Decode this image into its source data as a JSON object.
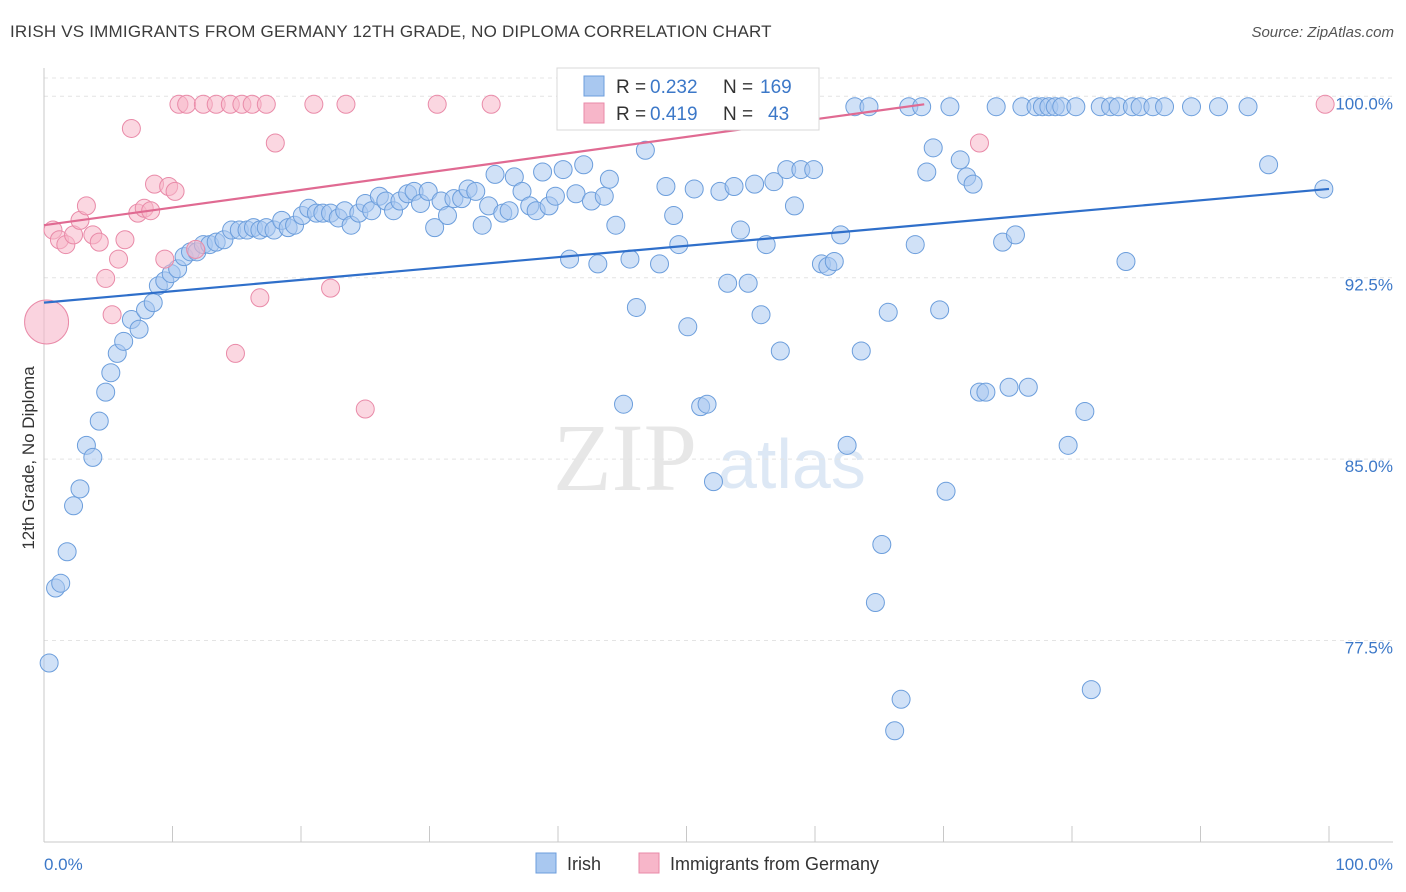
{
  "header": {
    "title": "IRISH VS IMMIGRANTS FROM GERMANY 12TH GRADE, NO DIPLOMA CORRELATION CHART",
    "source": "Source: ZipAtlas.com"
  },
  "watermark": {
    "zip": "ZIP",
    "atlas": "atlas"
  },
  "stats_box": {
    "rows": [
      {
        "r_label": "R =",
        "r_value": "0.232",
        "n_label": "N =",
        "n_value": "169",
        "color": "#a9c8f0"
      },
      {
        "r_label": "R =",
        "r_value": "0.419",
        "n_label": "N =",
        "n_value": "43",
        "color": "#f7b6c9"
      }
    ]
  },
  "legend": {
    "items": [
      {
        "label": "Irish",
        "color": "#a9c8f0"
      },
      {
        "label": "Immigrants from Germany",
        "color": "#f7b6c9"
      }
    ]
  },
  "chart_data": {
    "type": "scatter",
    "xlabel": "",
    "ylabel": "12th Grade, No Diploma",
    "xlim": [
      0,
      100
    ],
    "ylim": [
      69.5,
      101.5
    ],
    "x_tick_labels": [
      {
        "value": 0,
        "label": "0.0%"
      },
      {
        "value": 100,
        "label": "100.0%"
      }
    ],
    "y_ticks": [
      {
        "value": 100.0,
        "label": "100.0%"
      },
      {
        "value": 92.5,
        "label": "92.5%"
      },
      {
        "value": 85.0,
        "label": "85.0%"
      },
      {
        "value": 77.5,
        "label": "77.5%"
      }
    ],
    "grid": "horizontal dashed",
    "series": [
      {
        "name": "Irish",
        "color": "#a9c8f0",
        "stroke": "#6c9edc",
        "trend": {
          "x": [
            0,
            100
          ],
          "y": [
            91.8,
            96.5
          ],
          "color": "#2f6fca"
        },
        "points": [
          [
            0.4,
            76.9
          ],
          [
            0.9,
            80.0
          ],
          [
            1.3,
            80.2
          ],
          [
            1.8,
            81.5
          ],
          [
            2.3,
            83.4
          ],
          [
            2.8,
            84.1
          ],
          [
            3.3,
            85.9
          ],
          [
            3.8,
            85.4
          ],
          [
            4.3,
            86.9
          ],
          [
            4.8,
            88.1
          ],
          [
            5.2,
            88.9
          ],
          [
            5.7,
            89.7
          ],
          [
            6.2,
            90.2
          ],
          [
            6.8,
            91.1
          ],
          [
            7.4,
            90.7
          ],
          [
            7.9,
            91.5
          ],
          [
            8.5,
            91.8
          ],
          [
            8.9,
            92.5
          ],
          [
            9.4,
            92.7
          ],
          [
            9.9,
            93.0
          ],
          [
            10.4,
            93.2
          ],
          [
            10.9,
            93.7
          ],
          [
            11.4,
            93.9
          ],
          [
            11.9,
            93.9
          ],
          [
            12.4,
            94.2
          ],
          [
            12.9,
            94.2
          ],
          [
            13.4,
            94.3
          ],
          [
            14.0,
            94.4
          ],
          [
            14.6,
            94.8
          ],
          [
            15.2,
            94.8
          ],
          [
            15.8,
            94.8
          ],
          [
            16.3,
            94.9
          ],
          [
            16.8,
            94.8
          ],
          [
            17.3,
            94.9
          ],
          [
            17.9,
            94.8
          ],
          [
            18.5,
            95.2
          ],
          [
            19.0,
            94.9
          ],
          [
            19.5,
            95.0
          ],
          [
            20.1,
            95.4
          ],
          [
            20.6,
            95.7
          ],
          [
            21.2,
            95.5
          ],
          [
            21.7,
            95.5
          ],
          [
            22.3,
            95.5
          ],
          [
            22.9,
            95.3
          ],
          [
            23.4,
            95.6
          ],
          [
            23.9,
            95.0
          ],
          [
            24.5,
            95.5
          ],
          [
            25.0,
            95.9
          ],
          [
            25.5,
            95.6
          ],
          [
            26.1,
            96.2
          ],
          [
            26.6,
            96.0
          ],
          [
            27.2,
            95.6
          ],
          [
            27.7,
            96.0
          ],
          [
            28.3,
            96.3
          ],
          [
            28.8,
            96.4
          ],
          [
            29.3,
            95.9
          ],
          [
            29.9,
            96.4
          ],
          [
            30.4,
            94.9
          ],
          [
            30.9,
            96.0
          ],
          [
            31.4,
            95.4
          ],
          [
            31.9,
            96.1
          ],
          [
            32.5,
            96.1
          ],
          [
            33.0,
            96.5
          ],
          [
            33.6,
            96.4
          ],
          [
            34.1,
            95.0
          ],
          [
            34.6,
            95.8
          ],
          [
            35.1,
            97.1
          ],
          [
            35.7,
            95.5
          ],
          [
            36.2,
            95.6
          ],
          [
            36.6,
            97.0
          ],
          [
            37.2,
            96.4
          ],
          [
            37.8,
            95.8
          ],
          [
            38.3,
            95.6
          ],
          [
            38.8,
            97.2
          ],
          [
            39.3,
            95.8
          ],
          [
            39.8,
            96.2
          ],
          [
            40.4,
            97.3
          ],
          [
            40.9,
            93.6
          ],
          [
            41.4,
            96.3
          ],
          [
            42.0,
            97.5
          ],
          [
            42.6,
            96.0
          ],
          [
            43.1,
            93.4
          ],
          [
            43.6,
            96.2
          ],
          [
            44.0,
            96.9
          ],
          [
            44.5,
            95.0
          ],
          [
            45.1,
            87.6
          ],
          [
            45.6,
            93.6
          ],
          [
            46.1,
            91.6
          ],
          [
            46.8,
            98.1
          ],
          [
            47.3,
            99.9
          ],
          [
            47.9,
            93.4
          ],
          [
            48.4,
            96.6
          ],
          [
            49.0,
            95.4
          ],
          [
            49.4,
            94.2
          ],
          [
            50.1,
            90.8
          ],
          [
            50.6,
            96.5
          ],
          [
            51.1,
            87.5
          ],
          [
            51.6,
            87.6
          ],
          [
            52.1,
            84.4
          ],
          [
            52.6,
            96.4
          ],
          [
            53.2,
            92.6
          ],
          [
            53.7,
            96.6
          ],
          [
            54.2,
            94.8
          ],
          [
            54.8,
            92.6
          ],
          [
            55.3,
            96.7
          ],
          [
            55.8,
            91.3
          ],
          [
            56.2,
            94.2
          ],
          [
            56.8,
            96.8
          ],
          [
            57.3,
            89.8
          ],
          [
            57.8,
            97.3
          ],
          [
            58.4,
            95.8
          ],
          [
            58.9,
            97.3
          ],
          [
            59.4,
            100.0
          ],
          [
            59.9,
            97.3
          ],
          [
            60.5,
            93.4
          ],
          [
            61.0,
            93.3
          ],
          [
            61.5,
            93.5
          ],
          [
            62.0,
            94.6
          ],
          [
            62.5,
            85.9
          ],
          [
            63.1,
            99.9
          ],
          [
            63.6,
            89.8
          ],
          [
            64.2,
            99.9
          ],
          [
            64.7,
            79.4
          ],
          [
            65.2,
            81.8
          ],
          [
            65.7,
            91.4
          ],
          [
            66.2,
            74.1
          ],
          [
            66.7,
            75.4
          ],
          [
            67.3,
            99.9
          ],
          [
            67.8,
            94.2
          ],
          [
            68.3,
            99.9
          ],
          [
            68.7,
            97.2
          ],
          [
            69.2,
            98.2
          ],
          [
            69.7,
            91.5
          ],
          [
            70.2,
            84.0
          ],
          [
            70.5,
            99.9
          ],
          [
            71.3,
            97.7
          ],
          [
            71.8,
            97.0
          ],
          [
            72.3,
            96.7
          ],
          [
            72.8,
            88.1
          ],
          [
            73.3,
            88.1
          ],
          [
            74.1,
            99.9
          ],
          [
            74.6,
            94.3
          ],
          [
            75.1,
            88.3
          ],
          [
            75.6,
            94.6
          ],
          [
            76.1,
            99.9
          ],
          [
            76.6,
            88.3
          ],
          [
            77.2,
            99.9
          ],
          [
            77.7,
            99.9
          ],
          [
            78.2,
            99.9
          ],
          [
            78.7,
            99.9
          ],
          [
            79.2,
            99.9
          ],
          [
            79.7,
            85.9
          ],
          [
            80.3,
            99.9
          ],
          [
            81.0,
            87.3
          ],
          [
            81.5,
            75.8
          ],
          [
            82.2,
            99.9
          ],
          [
            83.0,
            99.9
          ],
          [
            83.6,
            99.9
          ],
          [
            84.2,
            93.5
          ],
          [
            84.7,
            99.9
          ],
          [
            85.3,
            99.9
          ],
          [
            86.3,
            99.9
          ],
          [
            87.2,
            99.9
          ],
          [
            89.3,
            99.9
          ],
          [
            91.4,
            99.9
          ],
          [
            93.7,
            99.9
          ],
          [
            95.3,
            97.5
          ],
          [
            99.6,
            96.5
          ]
        ]
      },
      {
        "name": "Immigrants from Germany",
        "color": "#f7b6c9",
        "stroke": "#e98aa8",
        "trend": {
          "x": [
            0,
            68.5
          ],
          "y": [
            95.0,
            100.0
          ],
          "color": "#e06a92"
        },
        "points": [
          [
            0.7,
            94.8
          ],
          [
            1.2,
            94.4
          ],
          [
            1.7,
            94.2
          ],
          [
            2.3,
            94.6
          ],
          [
            2.8,
            95.2
          ],
          [
            3.3,
            95.8
          ],
          [
            3.8,
            94.6
          ],
          [
            4.3,
            94.3
          ],
          [
            4.8,
            92.8
          ],
          [
            5.3,
            91.3
          ],
          [
            5.8,
            93.6
          ],
          [
            6.3,
            94.4
          ],
          [
            6.8,
            99.0
          ],
          [
            7.3,
            95.5
          ],
          [
            7.8,
            95.7
          ],
          [
            8.3,
            95.6
          ],
          [
            8.6,
            96.7
          ],
          [
            9.4,
            93.6
          ],
          [
            9.7,
            96.6
          ],
          [
            10.2,
            96.4
          ],
          [
            10.5,
            100.0
          ],
          [
            11.1,
            100.0
          ],
          [
            11.8,
            94.0
          ],
          [
            12.4,
            100.0
          ],
          [
            13.4,
            100.0
          ],
          [
            14.5,
            100.0
          ],
          [
            14.9,
            89.7
          ],
          [
            15.4,
            100.0
          ],
          [
            16.2,
            100.0
          ],
          [
            16.8,
            92.0
          ],
          [
            17.3,
            100.0
          ],
          [
            18.0,
            98.4
          ],
          [
            21.0,
            100.0
          ],
          [
            22.3,
            92.4
          ],
          [
            23.5,
            100.0
          ],
          [
            25.0,
            87.4
          ],
          [
            30.6,
            100.0
          ],
          [
            34.8,
            100.0
          ],
          [
            72.8,
            98.4
          ],
          [
            99.7,
            100.0
          ]
        ],
        "big_point": [
          0.2,
          91.0
        ]
      }
    ]
  }
}
